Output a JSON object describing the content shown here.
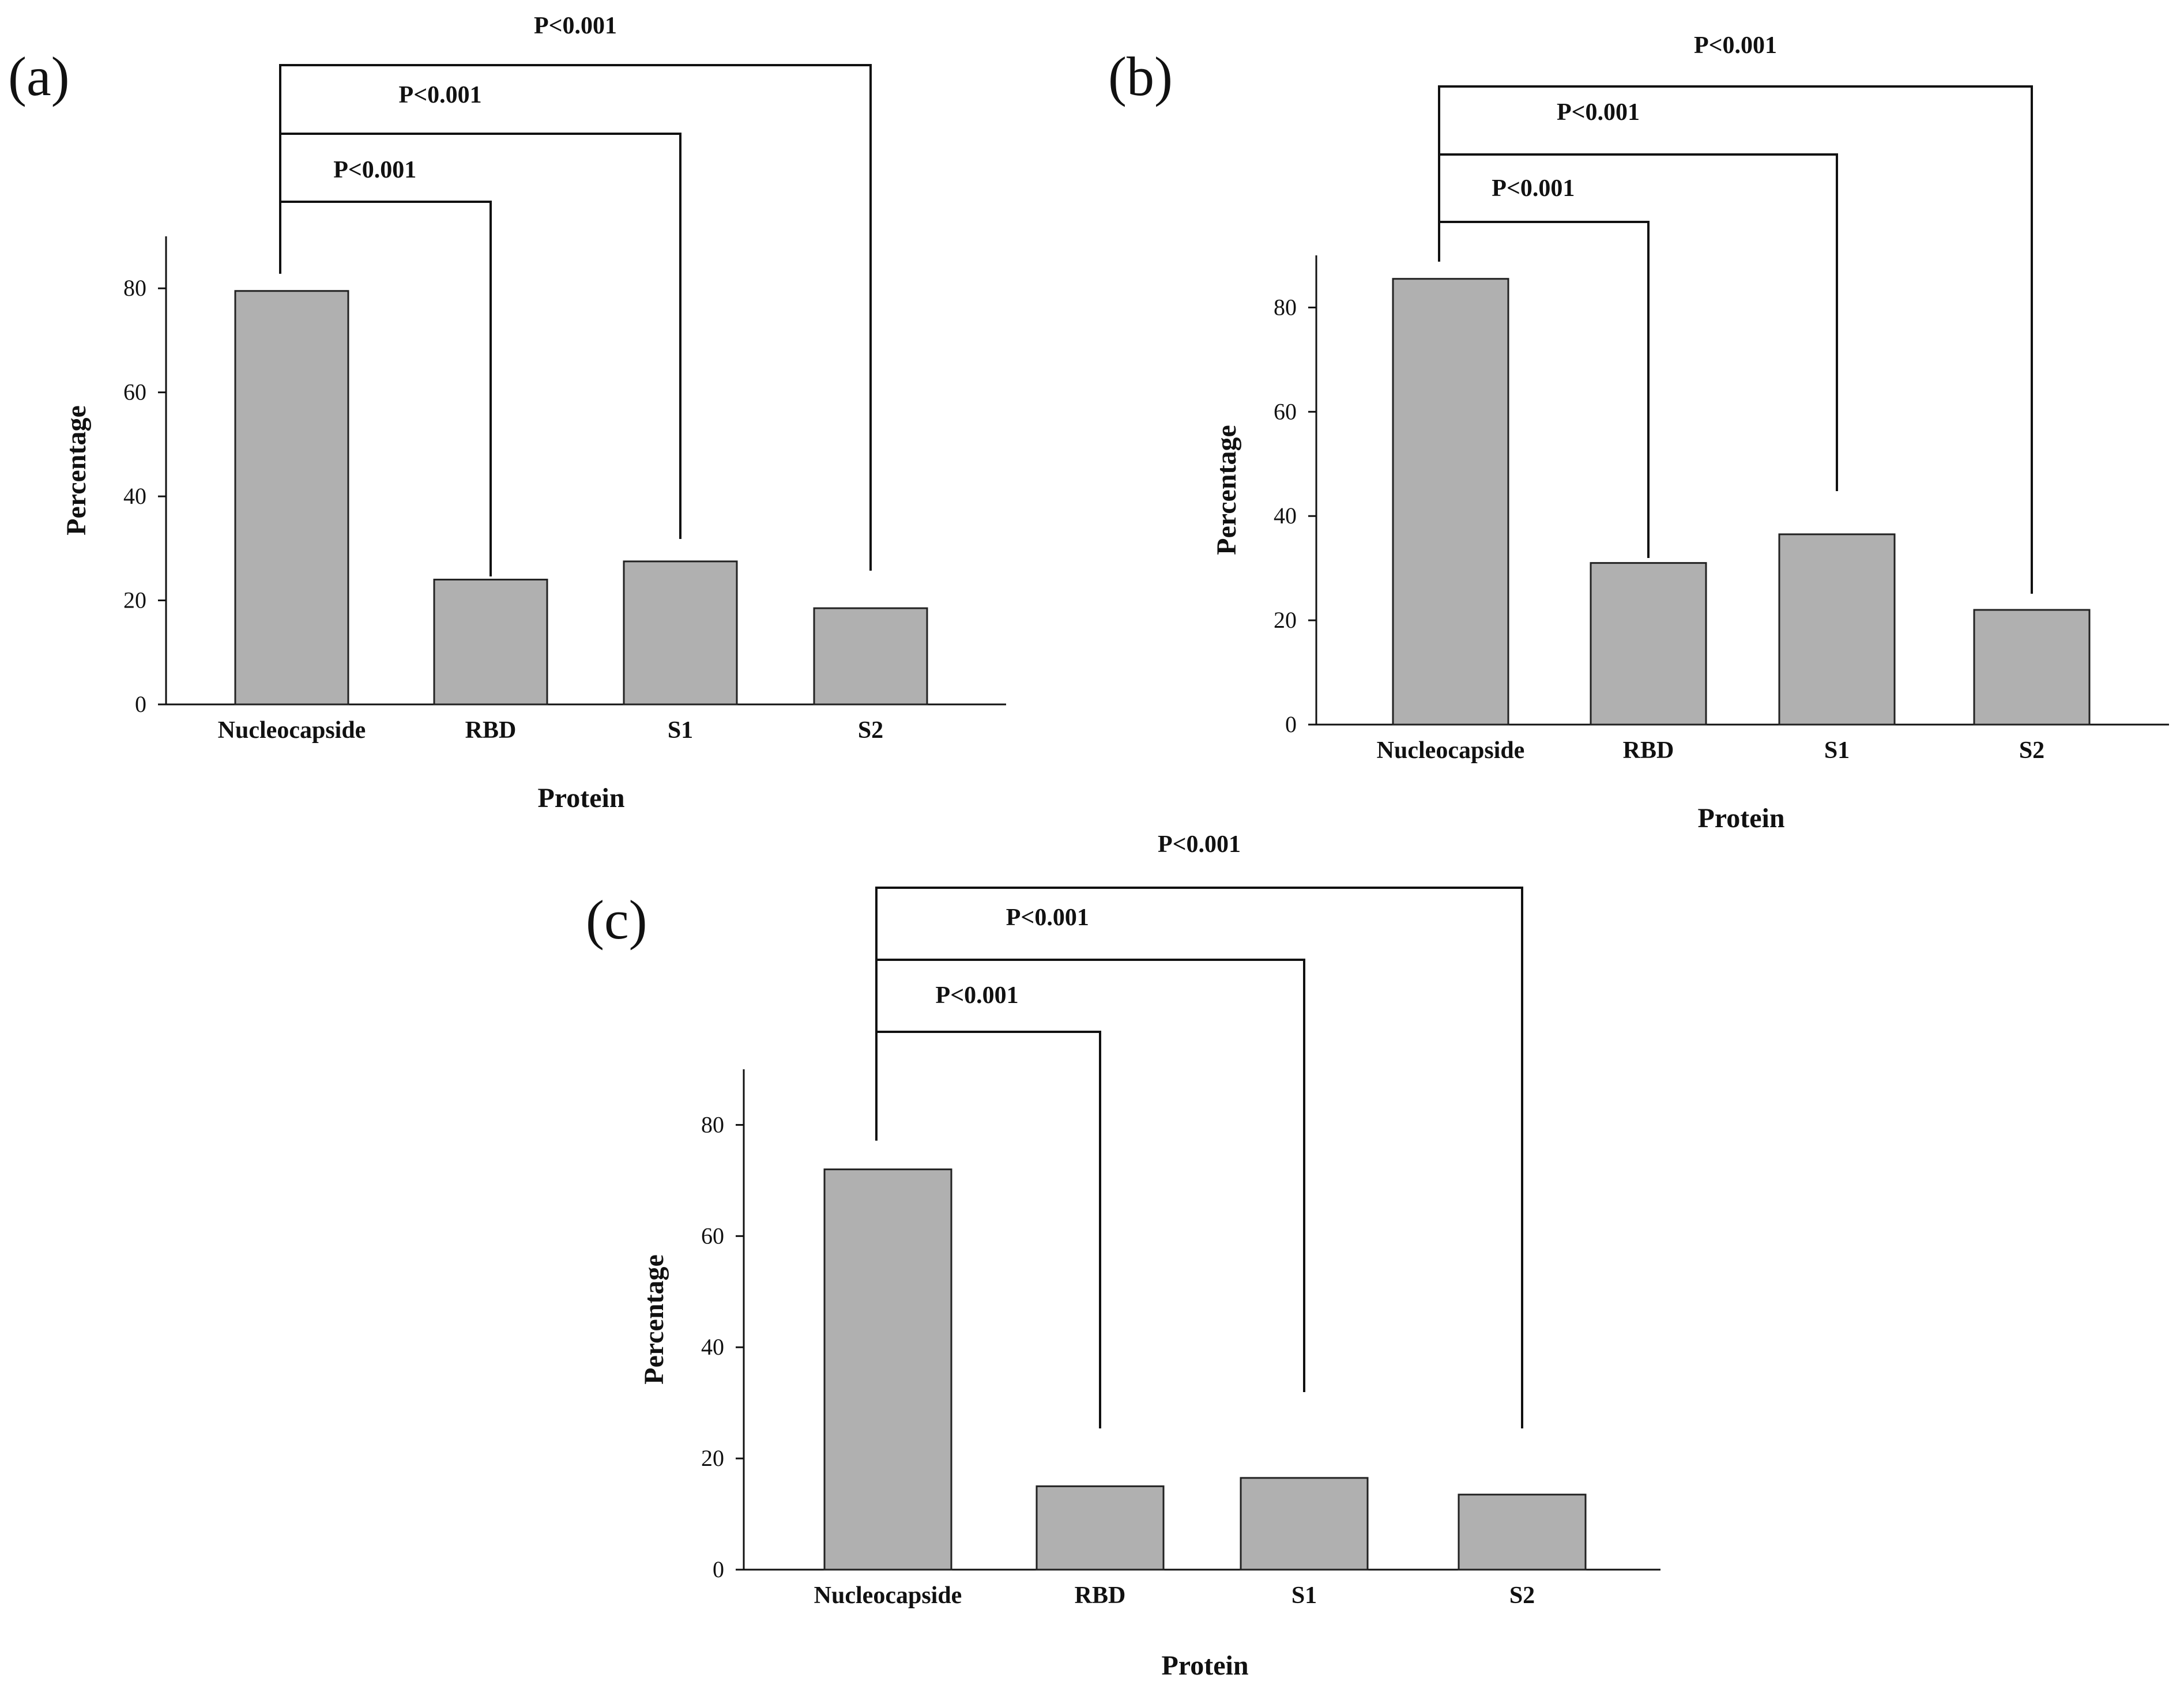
{
  "chart_data": [
    {
      "panel": "(a)",
      "type": "bar",
      "categories": [
        "Nucleocapside",
        "RBD",
        "S1",
        "S2"
      ],
      "values": [
        79.5,
        24,
        27.5,
        18.5
      ],
      "xlabel": "Protein",
      "ylabel": "Percentage",
      "ylim": [
        0,
        90
      ],
      "yticks": [
        0,
        20,
        40,
        60,
        80
      ],
      "significance": [
        {
          "from": "Nucleocapside",
          "to": "RBD",
          "label": "P<0.001"
        },
        {
          "from": "Nucleocapside",
          "to": "S1",
          "label": "P<0.001"
        },
        {
          "from": "Nucleocapside",
          "to": "S2",
          "label": "P<0.001"
        }
      ]
    },
    {
      "panel": "(b)",
      "type": "bar",
      "categories": [
        "Nucleocapside",
        "RBD",
        "S1",
        "S2"
      ],
      "values": [
        85.5,
        31,
        36.5,
        22
      ],
      "xlabel": "Protein",
      "ylabel": "Percentage",
      "ylim": [
        0,
        90
      ],
      "yticks": [
        0,
        20,
        40,
        60,
        80
      ],
      "significance": [
        {
          "from": "Nucleocapside",
          "to": "RBD",
          "label": "P<0.001"
        },
        {
          "from": "Nucleocapside",
          "to": "S1",
          "label": "P<0.001"
        },
        {
          "from": "Nucleocapside",
          "to": "S2",
          "label": "P<0.001"
        }
      ]
    },
    {
      "panel": "(c)",
      "type": "bar",
      "categories": [
        "Nucleocapside",
        "RBD",
        "S1",
        "S2"
      ],
      "values": [
        72,
        15,
        16.5,
        13.5
      ],
      "xlabel": "Protein",
      "ylabel": "Percentage",
      "ylim": [
        0,
        90
      ],
      "yticks": [
        0,
        20,
        40,
        60,
        80
      ],
      "significance": [
        {
          "from": "Nucleocapside",
          "to": "RBD",
          "label": "P<0.001"
        },
        {
          "from": "Nucleocapside",
          "to": "S1",
          "label": "P<0.001"
        },
        {
          "from": "Nucleocapside",
          "to": "S2",
          "label": "P<0.001"
        }
      ]
    }
  ]
}
